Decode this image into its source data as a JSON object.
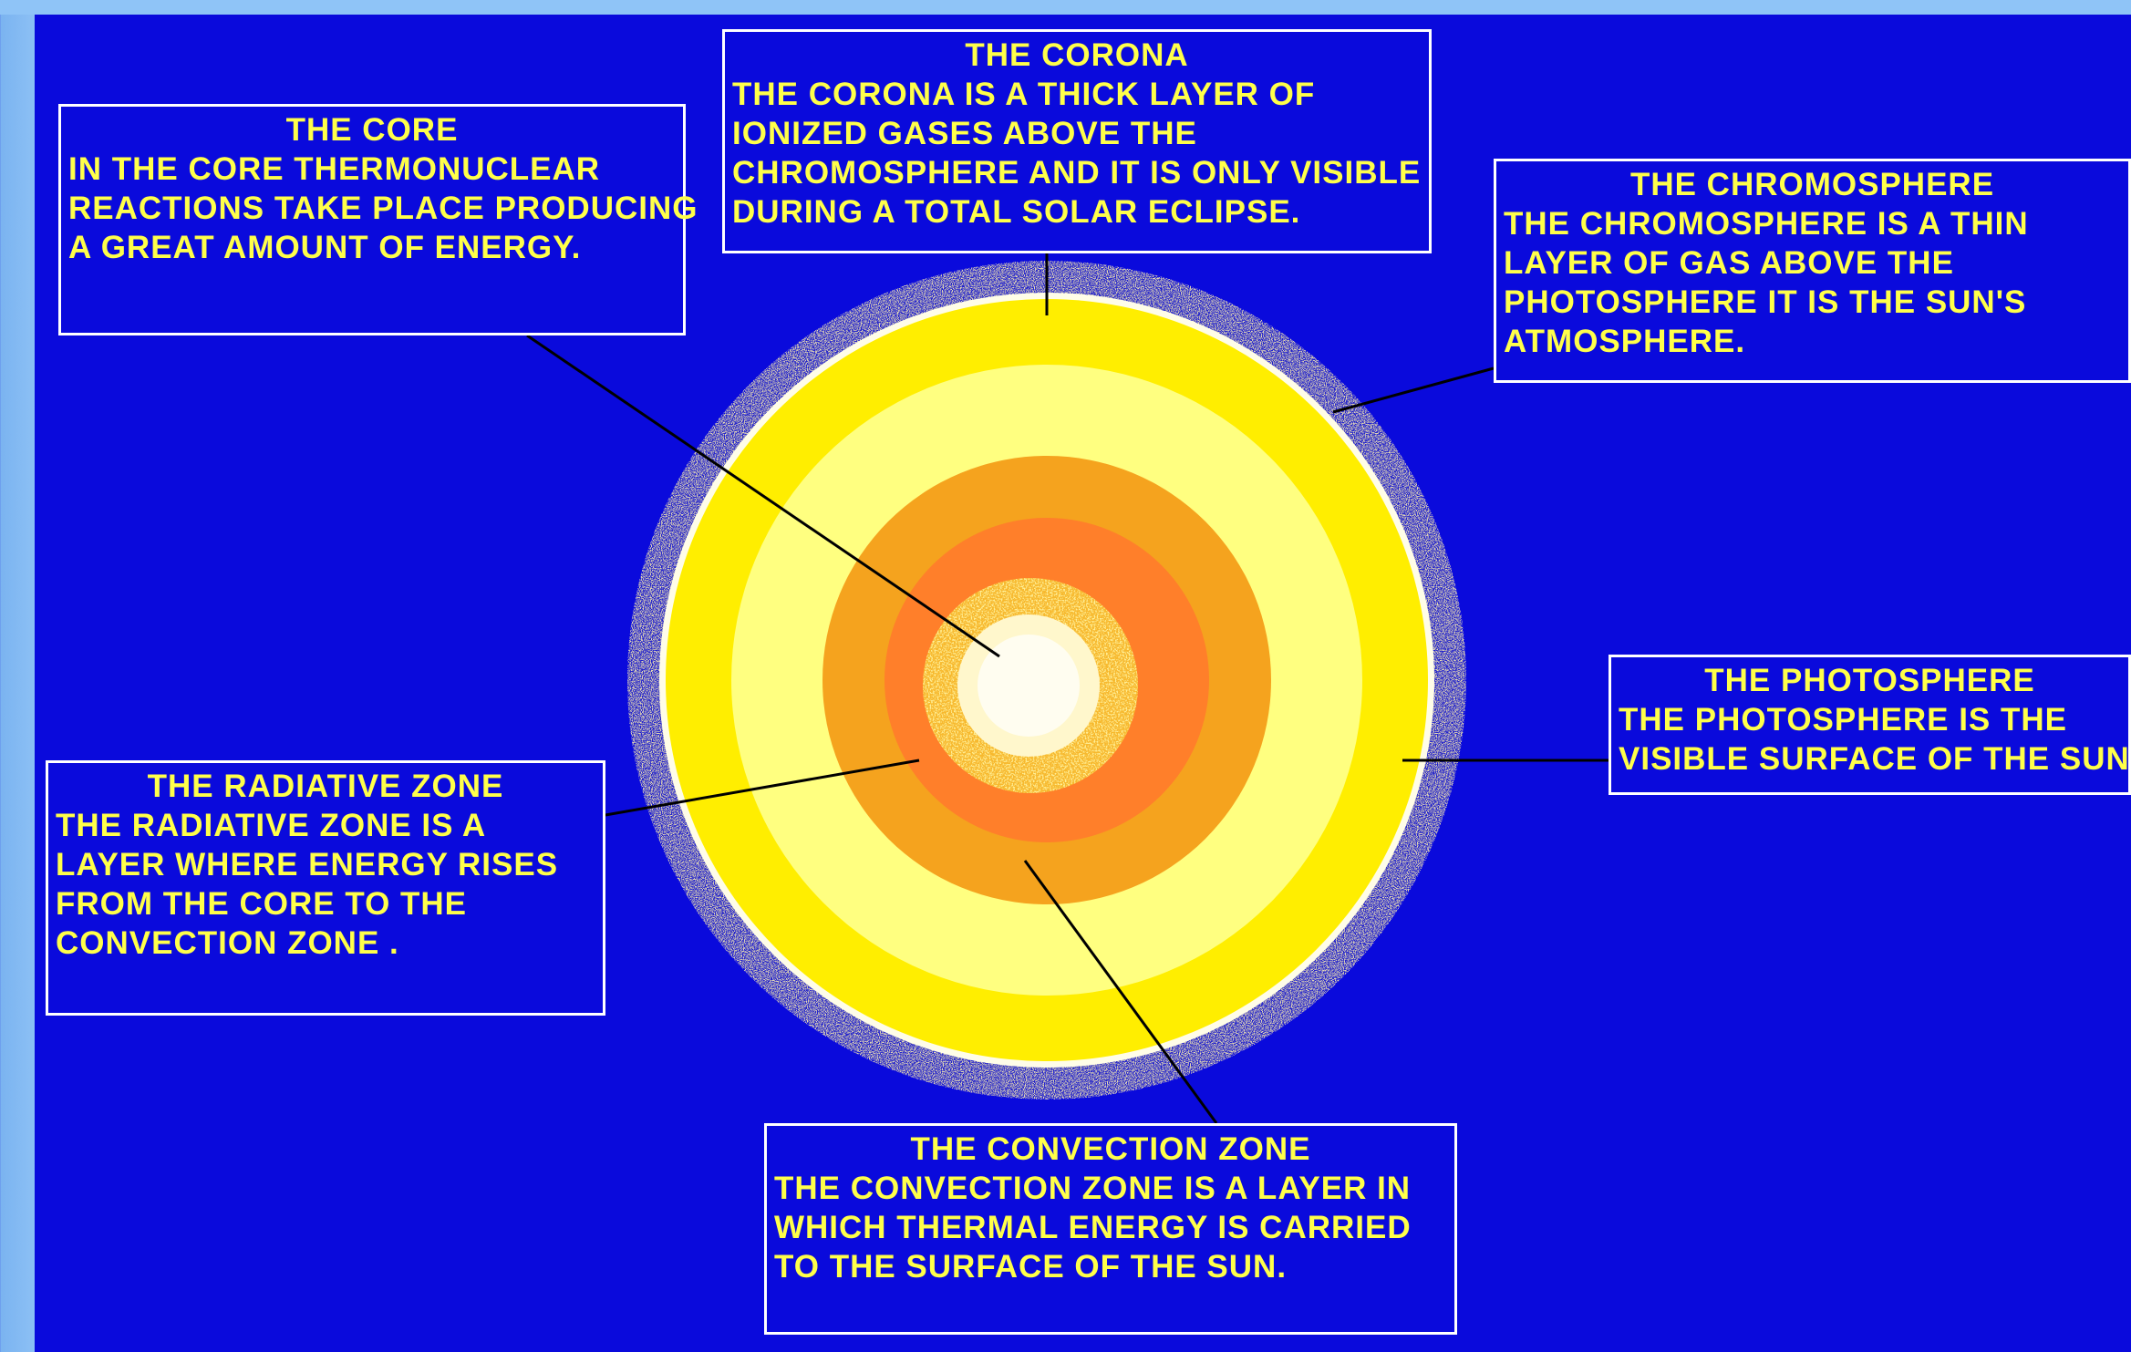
{
  "colors": {
    "background": "#0a0adc",
    "text": "#ffff4a",
    "box_border": "#ffffff",
    "corona_speckle": "#b8a96a",
    "photosphere": "#ffee00",
    "convection_zone": "#ffff80",
    "radiative_outer": "#f5a31e",
    "radiative_inner": "#ff7f2a",
    "core": "#fffbe0"
  },
  "labels": {
    "core": {
      "title": "THE  CORE",
      "lines": [
        "IN  THE  CORE  THERMONUCLEAR",
        "REACTIONS TAKE PLACE PRODUCING",
        "A GREAT AMOUNT OF ENERGY."
      ]
    },
    "corona": {
      "title": "THE  CORONA",
      "lines": [
        "THE  CORONA  IS  A  THICK  LAYER  OF",
        "IONIZED  GASES  ABOVE  THE",
        "CHROMOSPHERE AND IT IS ONLY VISIBLE",
        "DURING A TOTAL SOLAR ECLIPSE."
      ]
    },
    "chromosphere": {
      "title": "THE  CHROMOSPHERE",
      "lines": [
        "THE  CHROMOSPHERE  IS  A  THIN",
        "LAYER  OF  GAS  ABOVE  THE",
        "PHOTOSPHERE  IT  IS  THE  SUN'S",
        "ATMOSPHERE."
      ]
    },
    "photosphere": {
      "title": "THE  PHOTOSPHERE",
      "lines": [
        "THE  PHOTOSPHERE  IS  THE",
        "VISIBLE SURFACE OF THE SUN."
      ]
    },
    "radiative": {
      "title": "THE RADIATIVE ZONE",
      "lines": [
        "THE  RADIATIVE  ZONE  IS  A",
        "LAYER WHERE ENERGY RISES",
        "FROM  THE  CORE  TO  THE",
        "CONVECTION ZONE ."
      ]
    },
    "convection": {
      "title": "THE CONVECTION ZONE",
      "lines": [
        "THE CONVECTION ZONE IS A LAYER IN",
        "WHICH THERMAL ENERGY IS CARRIED",
        "TO THE SURFACE OF THE SUN."
      ]
    }
  }
}
